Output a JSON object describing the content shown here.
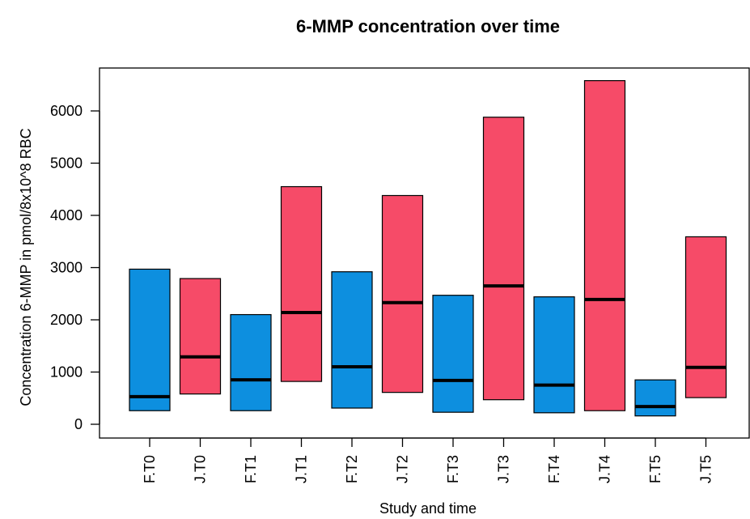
{
  "chart_data": {
    "type": "bar",
    "subtype": "floating-range-with-median",
    "title": "6-MMP concentration over time",
    "xlabel": "Study and time",
    "ylabel": "Concentration 6-MMP in pmol/8x10^8 RBC",
    "ylim": [
      0,
      6600
    ],
    "yticks": [
      0,
      1000,
      2000,
      3000,
      4000,
      5000,
      6000
    ],
    "grid": false,
    "legend": "none",
    "colors": {
      "F": "#0d8fdf",
      "J": "#f64b68",
      "border": "#000000",
      "median": "#000000"
    },
    "categories": [
      "F.T0",
      "J.T0",
      "F.T1",
      "J.T1",
      "F.T2",
      "J.T2",
      "F.T3",
      "J.T3",
      "F.T4",
      "J.T4",
      "F.T5",
      "J.T5"
    ],
    "group": [
      "F",
      "J",
      "F",
      "J",
      "F",
      "J",
      "F",
      "J",
      "F",
      "J",
      "F",
      "J"
    ],
    "low": [
      260,
      580,
      260,
      820,
      310,
      610,
      230,
      470,
      220,
      260,
      160,
      510
    ],
    "high": [
      2970,
      2790,
      2100,
      4550,
      2920,
      4380,
      2470,
      5880,
      2440,
      6580,
      850,
      3590
    ],
    "median": [
      530,
      1290,
      850,
      2140,
      1100,
      2330,
      840,
      2650,
      750,
      2390,
      340,
      1090
    ]
  }
}
